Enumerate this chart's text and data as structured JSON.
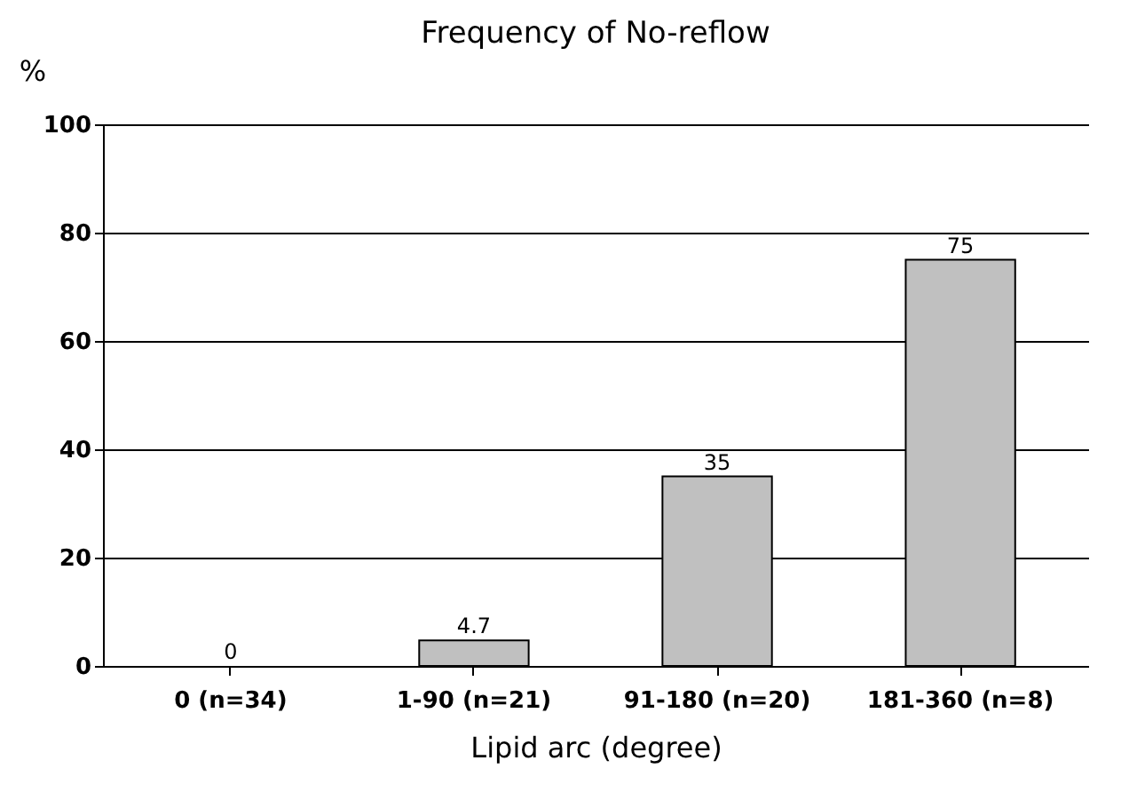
{
  "chart_data": {
    "type": "bar",
    "title": "Frequency of No-reflow",
    "xlabel": "Lipid arc (degree)",
    "ylabel": "%",
    "categories": [
      "0 (n=34)",
      "1-90 (n=21)",
      "91-180 (n=20)",
      "181-360 (n=8)"
    ],
    "values": [
      0,
      4.7,
      35,
      75
    ],
    "color": "#c0c0c0",
    "ylim": [
      0,
      100
    ],
    "yticks": [
      0,
      20,
      40,
      60,
      80,
      100
    ],
    "grid": "y",
    "data_labels": true
  }
}
